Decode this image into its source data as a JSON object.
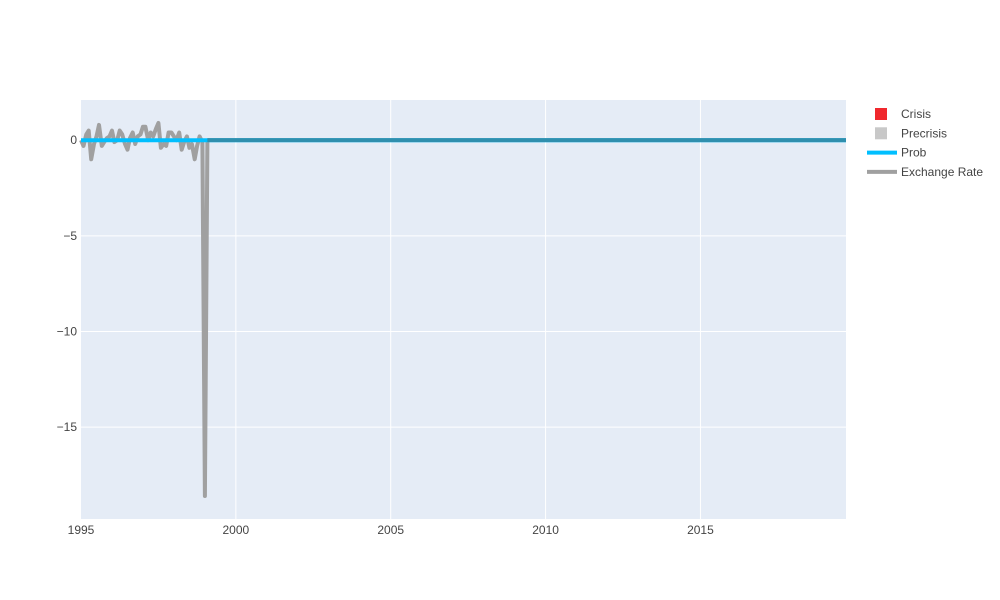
{
  "chart_data": {
    "type": "line",
    "title": "",
    "xlabel": "",
    "ylabel": "",
    "xlim": [
      1995,
      2019.7
    ],
    "ylim": [
      -19.8,
      2.1
    ],
    "x_ticks": [
      {
        "value": 1995,
        "label": "1995"
      },
      {
        "value": 2000,
        "label": "2000"
      },
      {
        "value": 2005,
        "label": "2005"
      },
      {
        "value": 2010,
        "label": "2010"
      },
      {
        "value": 2015,
        "label": "2015"
      }
    ],
    "y_ticks": [
      {
        "value": 0,
        "label": "0"
      },
      {
        "value": -5,
        "label": "−5"
      },
      {
        "value": -10,
        "label": "−10"
      },
      {
        "value": -15,
        "label": "−15"
      }
    ],
    "grid": true,
    "legend_position": "top-right",
    "legend": [
      {
        "name": "Crisis",
        "kind": "square",
        "color": "#f0282d"
      },
      {
        "name": "Precrisis",
        "kind": "square",
        "color": "#c8c8c8"
      },
      {
        "name": "Prob",
        "kind": "line",
        "color": "#00bfff"
      },
      {
        "name": "Exchange Rate",
        "kind": "line",
        "color": "#a0a0a0"
      }
    ],
    "series": [
      {
        "name": "Exchange Rate",
        "color": "#a0a0a0",
        "x": [
          1995.0,
          1995.08,
          1995.17,
          1995.25,
          1995.33,
          1995.42,
          1995.5,
          1995.58,
          1995.67,
          1995.75,
          1995.83,
          1995.92,
          1996.0,
          1996.08,
          1996.17,
          1996.25,
          1996.33,
          1996.42,
          1996.5,
          1996.58,
          1996.67,
          1996.75,
          1996.83,
          1996.92,
          1997.0,
          1997.08,
          1997.17,
          1997.25,
          1997.33,
          1997.42,
          1997.5,
          1997.58,
          1997.67,
          1997.75,
          1997.83,
          1997.92,
          1998.0,
          1998.08,
          1998.17,
          1998.25,
          1998.33,
          1998.42,
          1998.5,
          1998.58,
          1998.67,
          1998.75,
          1998.83,
          1998.92,
          1999.0,
          1999.08
        ],
        "y": [
          0.0,
          -0.3,
          0.3,
          0.5,
          -1.0,
          -0.2,
          0.2,
          0.8,
          -0.3,
          -0.1,
          0.1,
          0.2,
          0.5,
          -0.1,
          0.0,
          0.5,
          0.3,
          -0.2,
          -0.5,
          0.1,
          0.4,
          -0.2,
          0.2,
          0.3,
          0.7,
          0.7,
          0.0,
          0.4,
          0.2,
          0.6,
          0.9,
          -0.4,
          -0.2,
          -0.3,
          0.4,
          0.4,
          0.2,
          0.0,
          0.4,
          -0.5,
          -0.1,
          0.2,
          -0.4,
          -0.2,
          -1.0,
          -0.3,
          0.2,
          -0.1,
          -18.6,
          0.0
        ]
      },
      {
        "name": "Prob",
        "color": "#00bfff",
        "x": [
          1995.0,
          2019.7
        ],
        "y": [
          0.0,
          0.0
        ]
      }
    ]
  }
}
